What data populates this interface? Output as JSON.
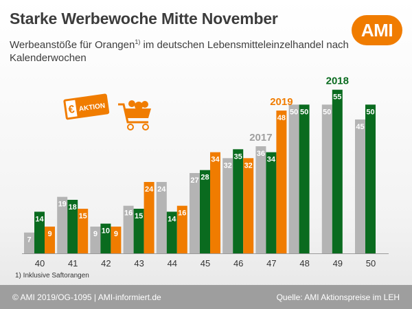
{
  "header": {
    "title": "Starke Werbewoche Mitte November",
    "subtitle_main": "Werbeanstöße für Orangen",
    "subtitle_sup": "1)",
    "subtitle_rest": " im deutschen Lebensmitteleinzelhandel nach Kalenderwochen"
  },
  "logo": {
    "text": "AMI",
    "color": "#f07c00"
  },
  "icons": {
    "coupon": "euro-aktion-coupon-icon",
    "cart": "shopping-cart-icon",
    "coupon_text": "AKTION",
    "coupon_symbol": "€"
  },
  "footnote": "1) Inklusive Saftorangen",
  "footer": {
    "left": "© AMI 2019/OG-1095 | AMI-informiert.de",
    "right": "Quelle: AMI Aktionspreise im LEH"
  },
  "chart_data": {
    "type": "bar",
    "categories": [
      "40",
      "41",
      "42",
      "43",
      "44",
      "45",
      "46",
      "47",
      "48",
      "49",
      "50"
    ],
    "series": [
      {
        "name": "2017",
        "color": "#b4b4b4",
        "values": [
          7,
          19,
          9,
          16,
          24,
          27,
          32,
          36,
          50,
          50,
          45
        ]
      },
      {
        "name": "2018",
        "color": "#0a6b1f",
        "values": [
          14,
          18,
          10,
          15,
          14,
          28,
          35,
          34,
          50,
          55,
          50
        ]
      },
      {
        "name": "2019",
        "color": "#f07c00",
        "values": [
          9,
          15,
          9,
          24,
          16,
          34,
          32,
          48,
          null,
          null,
          null
        ]
      }
    ],
    "ylim": [
      0,
      57
    ],
    "grid": false,
    "legend": "series labels placed above bars"
  }
}
